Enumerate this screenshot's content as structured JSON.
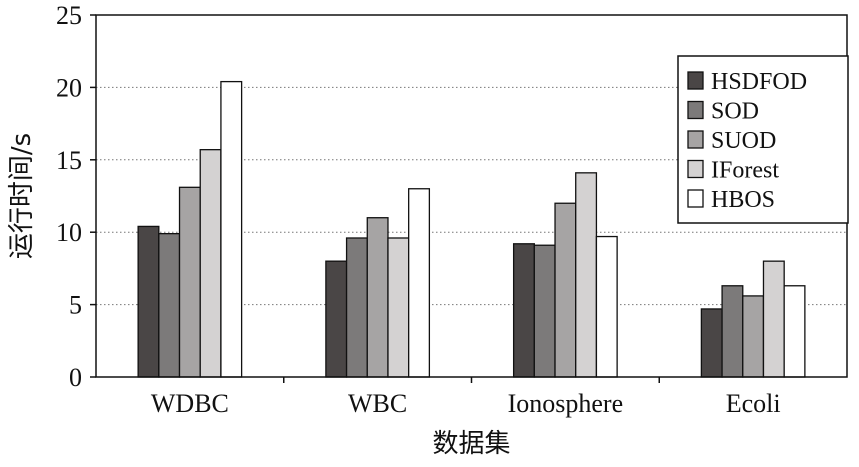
{
  "chart_data": {
    "type": "bar",
    "categories": [
      "WDBC",
      "WBC",
      "Ionosphere",
      "Ecoli"
    ],
    "series": [
      {
        "name": "HSDFOD",
        "values": [
          10.4,
          8.0,
          9.2,
          4.7
        ],
        "color": "#4a4646"
      },
      {
        "name": "SOD",
        "values": [
          9.9,
          9.6,
          9.1,
          6.3
        ],
        "color": "#7c7a7a"
      },
      {
        "name": "SUOD",
        "values": [
          13.1,
          11.0,
          12.0,
          5.6
        ],
        "color": "#a6a4a4"
      },
      {
        "name": "IForest",
        "values": [
          15.7,
          9.6,
          14.1,
          8.0
        ],
        "color": "#d4d2d2"
      },
      {
        "name": "HBOS",
        "values": [
          20.4,
          13.0,
          9.7,
          6.3
        ],
        "color": "#ffffff"
      }
    ],
    "title": "",
    "xlabel": "数据集",
    "ylabel": "运行时间/s",
    "ylim": [
      0,
      25
    ],
    "yticks": [
      0,
      5,
      10,
      15,
      20,
      25
    ],
    "grid": "horizontal-dotted",
    "legend_position": "right"
  }
}
